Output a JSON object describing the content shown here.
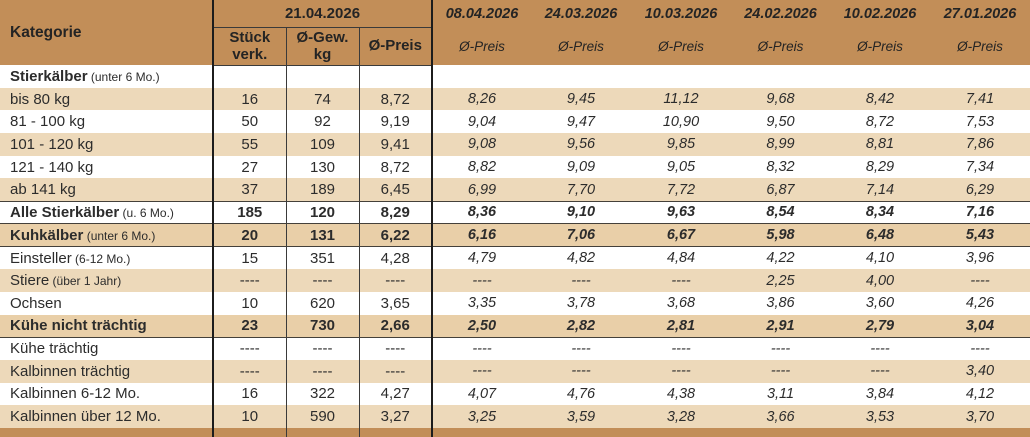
{
  "colors": {
    "accent_header": "#C28E58",
    "stripe_row": "#EDD9BA",
    "accent_bold_row": "#E9CFA8",
    "border_dark": "#1C1C1C",
    "text": "#2C2C2C"
  },
  "table": {
    "kategorie_header": "Kategorie",
    "current": {
      "date": "21.04.2026",
      "columns": [
        "Stück verk.",
        "Ø-Gew. kg",
        "Ø-Preis"
      ]
    },
    "history": {
      "dates": [
        "08.04.2026",
        "24.03.2026",
        "10.03.2026",
        "24.02.2026",
        "10.02.2026",
        "27.01.2026"
      ],
      "price_label": "Ø-Preis"
    },
    "rows": [
      {
        "label": "Stierkälber",
        "note": "(unter 6 Mo.)",
        "style": "group",
        "values": [
          "",
          "",
          ""
        ],
        "history": [
          "",
          "",
          "",
          "",
          "",
          ""
        ]
      },
      {
        "label": "bis 80 kg",
        "note": "",
        "style": "stripe",
        "values": [
          "16",
          "74",
          "8,72"
        ],
        "history": [
          "8,26",
          "9,45",
          "11,12",
          "9,68",
          "8,42",
          "7,41"
        ]
      },
      {
        "label": "81 - 100 kg",
        "note": "",
        "style": "white",
        "values": [
          "50",
          "92",
          "9,19"
        ],
        "history": [
          "9,04",
          "9,47",
          "10,90",
          "9,50",
          "8,72",
          "7,53"
        ]
      },
      {
        "label": "101 - 120 kg",
        "note": "",
        "style": "stripe",
        "values": [
          "55",
          "109",
          "9,41"
        ],
        "history": [
          "9,08",
          "9,56",
          "9,85",
          "8,99",
          "8,81",
          "7,86"
        ]
      },
      {
        "label": "121 - 140 kg",
        "note": "",
        "style": "white",
        "values": [
          "27",
          "130",
          "8,72"
        ],
        "history": [
          "8,82",
          "9,09",
          "9,05",
          "8,32",
          "8,29",
          "7,34"
        ]
      },
      {
        "label": "ab 141 kg",
        "note": "",
        "style": "stripe",
        "values": [
          "37",
          "189",
          "6,45"
        ],
        "history": [
          "6,99",
          "7,70",
          "7,72",
          "6,87",
          "7,14",
          "6,29"
        ]
      },
      {
        "label": "Alle Stierkälber",
        "note": "(u. 6 Mo.)",
        "style": "total total-white",
        "values": [
          "185",
          "120",
          "8,29"
        ],
        "history": [
          "8,36",
          "9,10",
          "9,63",
          "8,54",
          "8,34",
          "7,16"
        ]
      },
      {
        "label": "Kuhkälber",
        "note": "(unter 6 Mo.)",
        "style": "total total-accent",
        "values": [
          "20",
          "131",
          "6,22"
        ],
        "history": [
          "6,16",
          "7,06",
          "6,67",
          "5,98",
          "6,48",
          "5,43"
        ]
      },
      {
        "label": "Einsteller",
        "note": "(6-12 Mo.)",
        "style": "white",
        "values": [
          "15",
          "351",
          "4,28"
        ],
        "history": [
          "4,79",
          "4,82",
          "4,84",
          "4,22",
          "4,10",
          "3,96"
        ]
      },
      {
        "label": "Stiere",
        "note": "(über 1 Jahr)",
        "style": "stripe",
        "values": [
          "----",
          "----",
          "----"
        ],
        "history": [
          "----",
          "----",
          "----",
          "2,25",
          "4,00",
          "----"
        ]
      },
      {
        "label": "Ochsen",
        "note": "",
        "style": "white",
        "values": [
          "10",
          "620",
          "3,65"
        ],
        "history": [
          "3,35",
          "3,78",
          "3,68",
          "3,86",
          "3,60",
          "4,26"
        ]
      },
      {
        "label": "Kühe nicht trächtig",
        "note": "",
        "style": "total total-accent",
        "values": [
          "23",
          "730",
          "2,66"
        ],
        "history": [
          "2,50",
          "2,82",
          "2,81",
          "2,91",
          "2,79",
          "3,04"
        ]
      },
      {
        "label": "Kühe trächtig",
        "note": "",
        "style": "white",
        "values": [
          "----",
          "----",
          "----"
        ],
        "history": [
          "----",
          "----",
          "----",
          "----",
          "----",
          "----"
        ]
      },
      {
        "label": "Kalbinnen trächtig",
        "note": "",
        "style": "stripe",
        "values": [
          "----",
          "----",
          "----"
        ],
        "history": [
          "----",
          "----",
          "----",
          "----",
          "----",
          "3,40"
        ]
      },
      {
        "label": "Kalbinnen 6-12 Mo.",
        "note": "",
        "style": "white",
        "values": [
          "16",
          "322",
          "4,27"
        ],
        "history": [
          "4,07",
          "4,76",
          "4,38",
          "3,11",
          "3,84",
          "4,12"
        ]
      },
      {
        "label": "Kalbinnen über 12 Mo.",
        "note": "",
        "style": "stripe",
        "values": [
          "10",
          "590",
          "3,27"
        ],
        "history": [
          "3,25",
          "3,59",
          "3,28",
          "3,66",
          "3,53",
          "3,70"
        ]
      }
    ]
  }
}
